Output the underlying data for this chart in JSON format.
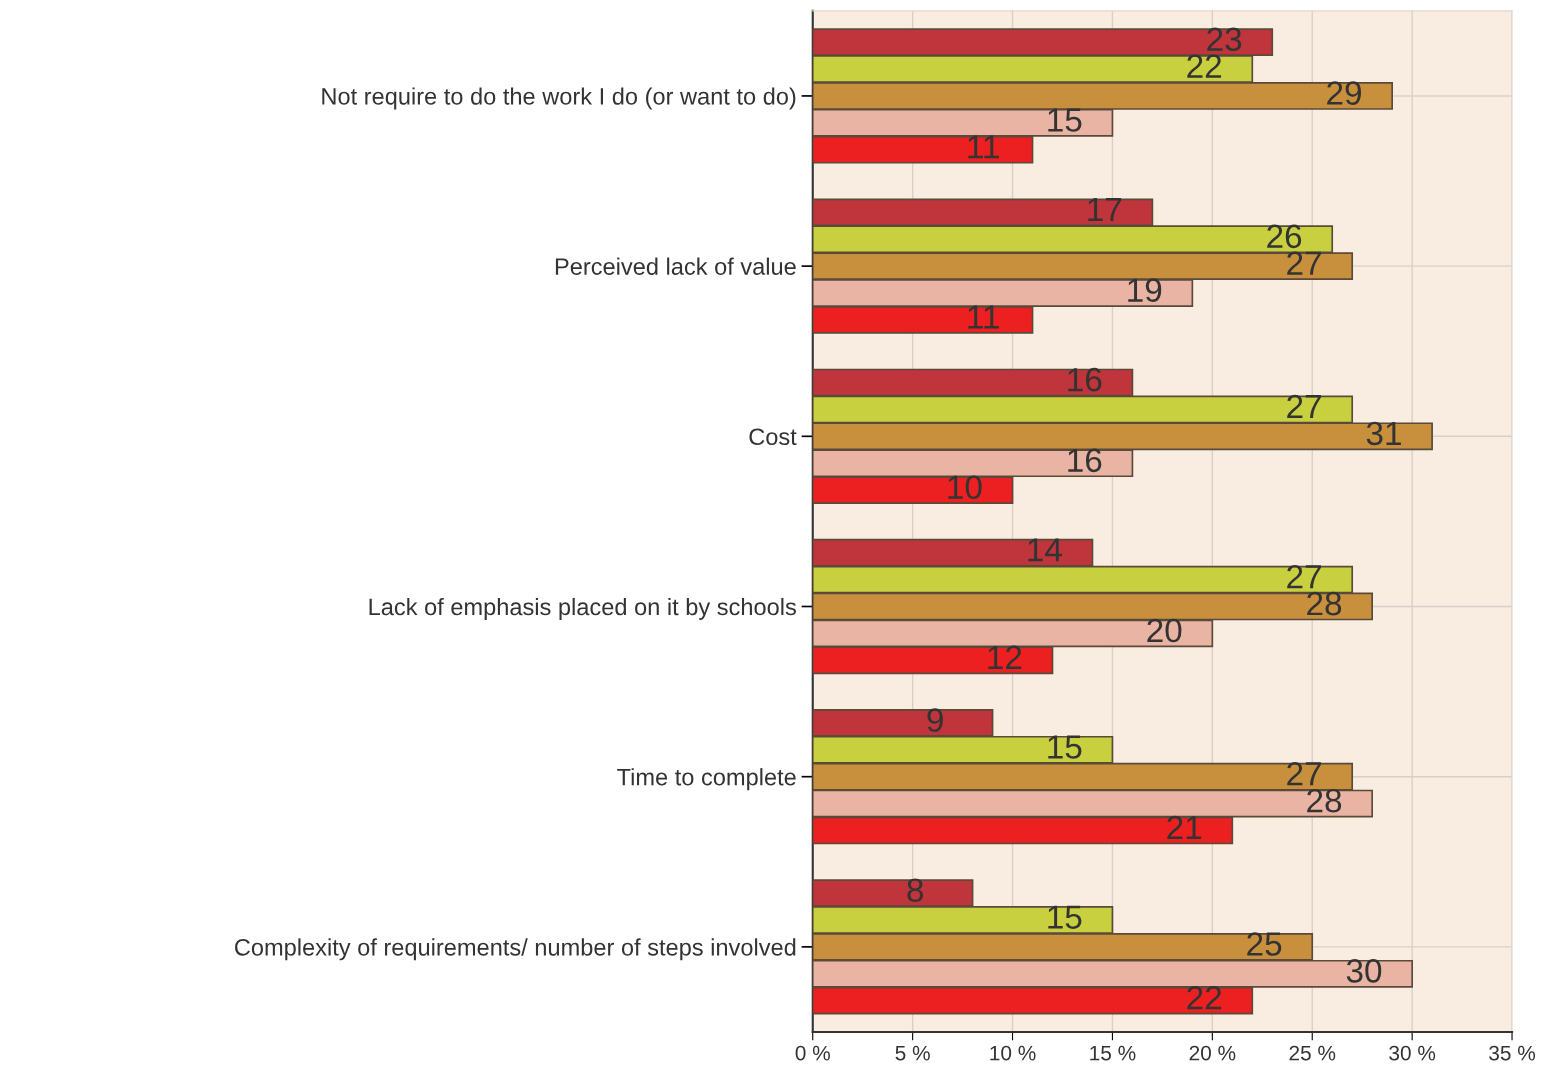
{
  "chart_data": {
    "type": "bar",
    "orientation": "horizontal",
    "categories": [
      "Not require to do the work I do (or want to do)",
      "Perceived lack of value",
      "Cost",
      "Lack of emphasis placed on it by schools",
      "Time to complete",
      "Complexity of requirements/ number of steps involved"
    ],
    "series": [
      {
        "color": "#c0343c",
        "values": [
          23,
          17,
          16,
          14,
          9,
          8
        ]
      },
      {
        "color": "#c8d040",
        "values": [
          22,
          26,
          27,
          27,
          15,
          15
        ]
      },
      {
        "color": "#c8903c",
        "values": [
          29,
          27,
          31,
          28,
          27,
          25
        ]
      },
      {
        "color": "#eab4a4",
        "values": [
          15,
          19,
          16,
          20,
          28,
          30
        ]
      },
      {
        "color": "#ec2020",
        "values": [
          11,
          11,
          10,
          12,
          21,
          22
        ]
      }
    ],
    "xlim": [
      0,
      35
    ],
    "xticks": [
      {
        "value": 0,
        "label": "0 %"
      },
      {
        "value": 5,
        "label": "5 %"
      },
      {
        "value": 10,
        "label": "10 %"
      },
      {
        "value": 15,
        "label": "15 %"
      },
      {
        "value": 20,
        "label": "20 %"
      },
      {
        "value": 25,
        "label": "25 %"
      },
      {
        "value": 30,
        "label": "30 %"
      },
      {
        "value": 35,
        "label": "35 %"
      }
    ],
    "grid": true,
    "data_labels": true,
    "legend": false
  }
}
